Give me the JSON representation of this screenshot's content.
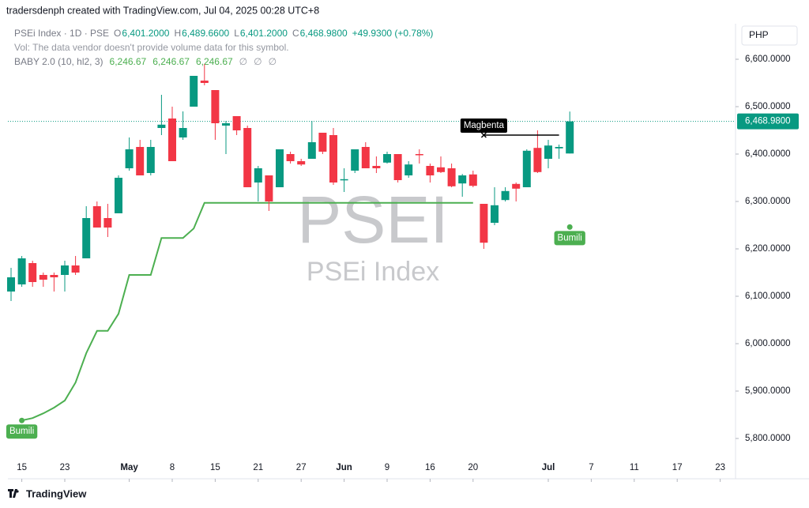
{
  "header": "tradersdenph created with TradingView.com, Jul 04, 2025 00:28 UTC+8",
  "legend": {
    "symbol": "PSEi Index · 1D · PSE",
    "ohlc": [
      {
        "key": "O",
        "value": "6,401.2000"
      },
      {
        "key": "H",
        "value": "6,489.6600"
      },
      {
        "key": "L",
        "value": "6,401.2000"
      },
      {
        "key": "C",
        "value": "6,468.9800"
      }
    ],
    "change": "+49.9300 (+0.78%)",
    "volume_note": "Vol: The data vendor doesn't provide volume data for this symbol.",
    "indicator": "BABY 2.0 (10, hl2, 3)",
    "indicator_values": [
      "6,246.67",
      "6,246.67",
      "6,246.67",
      "∅",
      "∅",
      "∅"
    ]
  },
  "currency": "PHP",
  "footer": "TradingView",
  "watermark": {
    "symbol": "PSEI",
    "name": "PSEi Index"
  },
  "chart_data": {
    "type": "candlestick",
    "up_color": "#089981",
    "down_color": "#f23645",
    "open": [
      6110,
      6125,
      6170,
      6145,
      6145,
      6145,
      6165,
      6180,
      6290,
      6265,
      6275,
      6370,
      6415,
      6360,
      6455,
      6475,
      6435,
      6500,
      6555,
      6535,
      6460,
      6480,
      6455,
      6340,
      6355,
      6330,
      6400,
      6385,
      6390,
      6445,
      6440,
      6345,
      6365,
      6415,
      6375,
      6382,
      6400,
      6355,
      6400,
      6375,
      6372,
      6370,
      6338,
      6357,
      6295,
      6255,
      6303,
      6337,
      6330,
      6413,
      6390,
      6412,
      6401.2
    ],
    "high": [
      6160,
      6185,
      6175,
      6150,
      6150,
      6175,
      6185,
      6290,
      6300,
      6295,
      6355,
      6435,
      6430,
      6430,
      6525,
      6500,
      6490,
      6565,
      6590,
      6535,
      6470,
      6480,
      6460,
      6375,
      6355,
      6410,
      6405,
      6390,
      6470,
      6445,
      6455,
      6370,
      6410,
      6425,
      6395,
      6405,
      6400,
      6385,
      6410,
      6380,
      6395,
      6380,
      6358,
      6365,
      6295,
      6330,
      6330,
      6340,
      6410,
      6450,
      6430,
      6420,
      6489.66
    ],
    "low": [
      6090,
      6120,
      6120,
      6120,
      6110,
      6110,
      6145,
      6180,
      6245,
      6225,
      6275,
      6365,
      6355,
      6355,
      6440,
      6385,
      6430,
      6500,
      6545,
      6430,
      6400,
      6440,
      6330,
      6300,
      6280,
      6330,
      6380,
      6375,
      6390,
      6400,
      6335,
      6320,
      6360,
      6370,
      6360,
      6380,
      6340,
      6350,
      6380,
      6340,
      6360,
      6330,
      6310,
      6330,
      6200,
      6250,
      6300,
      6300,
      6330,
      6360,
      6370,
      6390,
      6401.2
    ],
    "close": [
      6140,
      6180,
      6130,
      6135,
      6140,
      6165,
      6150,
      6265,
      6245,
      6245,
      6350,
      6410,
      6355,
      6415,
      6462,
      6385,
      6455,
      6565,
      6550,
      6465,
      6465,
      6450,
      6330,
      6370,
      6300,
      6410,
      6385,
      6378,
      6425,
      6405,
      6340,
      6347,
      6410,
      6370,
      6370,
      6400,
      6345,
      6378,
      6398,
      6355,
      6362,
      6332,
      6355,
      6333,
      6213,
      6292,
      6322,
      6327,
      6407,
      6362,
      6418,
      6415,
      6468.98
    ],
    "series": [
      {
        "name": "BABY 2.0 (10, hl2, 3)",
        "color": "#4caf50",
        "values": [
          null,
          5838,
          5843,
          5853,
          5865,
          5880,
          5918,
          5980,
          6027,
          6027,
          6063,
          6145,
          6145,
          6145,
          6223,
          6223,
          6223,
          6243,
          6297,
          6297,
          6297,
          6297,
          6297,
          6297,
          6297,
          6297,
          6297,
          6297,
          6297,
          6297,
          6297,
          6297,
          6297,
          6297,
          6297,
          6297,
          6297,
          6297,
          6297,
          6297,
          6297,
          6297,
          6297,
          6297,
          null,
          null,
          null,
          null,
          null,
          null,
          null,
          null,
          null
        ]
      }
    ],
    "ylim": [
      5725,
      6675
    ],
    "yticks": [
      {
        "value": 5800,
        "label": "5,800.0000"
      },
      {
        "value": 5900,
        "label": "5,900.0000"
      },
      {
        "value": 6000,
        "label": "6,000.0000"
      },
      {
        "value": 6100,
        "label": "6,100.0000"
      },
      {
        "value": 6200,
        "label": "6,200.0000"
      },
      {
        "value": 6300,
        "label": "6,300.0000"
      },
      {
        "value": 6400,
        "label": "6,400.0000"
      },
      {
        "value": 6500,
        "label": "6,500.0000"
      },
      {
        "value": 6600,
        "label": "6,600.0000"
      }
    ],
    "xticks": [
      {
        "value": 1,
        "label": "15"
      },
      {
        "value": 5,
        "label": "23"
      },
      {
        "value": 11,
        "label": "May"
      },
      {
        "value": 15,
        "label": "8"
      },
      {
        "value": 19,
        "label": "15"
      },
      {
        "value": 23,
        "label": "21"
      },
      {
        "value": 27,
        "label": "27"
      },
      {
        "value": 31,
        "label": "Jun"
      },
      {
        "value": 35,
        "label": "9"
      },
      {
        "value": 39,
        "label": "16"
      },
      {
        "value": 43,
        "label": "20"
      },
      {
        "value": 50,
        "label": "Jul"
      },
      {
        "value": 54,
        "label": "7"
      },
      {
        "value": 58,
        "label": "11"
      },
      {
        "value": 62,
        "label": "17"
      },
      {
        "value": 66,
        "label": "23"
      }
    ],
    "last_price": {
      "value": 6468.98,
      "label": "6,468.9800"
    },
    "annotations": [
      {
        "text": "Bumili",
        "index": 1,
        "value": 5838,
        "color": "#4caf50"
      },
      {
        "text": "Bumili",
        "index": 52,
        "value": 6246,
        "color": "#4caf50"
      },
      {
        "text": "Magbenta",
        "index": 44,
        "end_index": 51,
        "value": 6440,
        "color": "#000000"
      }
    ]
  }
}
